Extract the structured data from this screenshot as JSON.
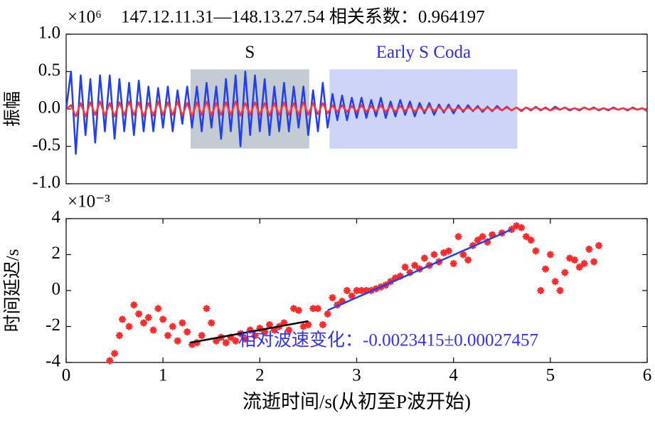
{
  "chart_data": [
    {
      "type": "line",
      "title": "147.12.11.31—148.13.27.54    相关系数：0.964197",
      "y_label": "振幅",
      "y_multiplier": "×10⁶",
      "xlim": [
        0,
        6
      ],
      "ylim": [
        -1,
        1
      ],
      "yticks": [
        {
          "value": -1,
          "label": "-1.0"
        },
        {
          "value": -0.5,
          "label": "-0.5"
        },
        {
          "value": 0,
          "label": "0.0"
        },
        {
          "value": 0.5,
          "label": "0.5"
        },
        {
          "value": 1,
          "label": "1.0"
        }
      ],
      "regions": [
        {
          "label": "S",
          "label_color": "#000000",
          "color": "#c3ccd3",
          "xlim": [
            1.285,
            2.51
          ],
          "ylim": [
            -0.53,
            0.53
          ]
        },
        {
          "label": "Early S Coda",
          "label_color": "#2a2aff",
          "color": "#cdd4f8",
          "xlim": [
            2.72,
            4.66
          ],
          "ylim": [
            -0.53,
            0.53
          ]
        }
      ],
      "x": [
        0,
        0.05,
        0.1,
        0.15,
        0.2,
        0.25,
        0.3,
        0.35,
        0.4,
        0.45,
        0.5,
        0.55,
        0.6,
        0.65,
        0.7,
        0.75,
        0.8,
        0.85,
        0.9,
        0.95,
        1,
        1.05,
        1.1,
        1.15,
        1.2,
        1.25,
        1.3,
        1.35,
        1.4,
        1.45,
        1.5,
        1.55,
        1.6,
        1.65,
        1.7,
        1.75,
        1.8,
        1.85,
        1.9,
        1.95,
        2,
        2.05,
        2.1,
        2.15,
        2.2,
        2.25,
        2.3,
        2.35,
        2.4,
        2.45,
        2.5,
        2.55,
        2.6,
        2.65,
        2.7,
        2.75,
        2.8,
        2.85,
        2.9,
        2.95,
        3,
        3.05,
        3.1,
        3.15,
        3.2,
        3.25,
        3.3,
        3.35,
        3.4,
        3.45,
        3.5,
        3.55,
        3.6,
        3.65,
        3.7,
        3.75,
        3.8,
        3.85,
        3.9,
        3.95,
        4,
        4.05,
        4.1,
        4.15,
        4.2,
        4.25,
        4.3,
        4.35,
        4.4,
        4.45,
        4.5,
        4.55,
        4.6,
        4.65,
        4.7,
        4.75,
        4.8,
        4.85,
        4.9,
        4.95,
        5,
        5.05,
        5.1,
        5.15,
        5.2,
        5.25,
        5.3,
        5.35,
        5.4,
        5.45,
        5.5,
        5.55,
        5.6,
        5.65,
        5.7,
        5.75,
        5.8,
        5.85,
        5.9,
        5.95,
        6
      ],
      "series": [
        {
          "type": "line",
          "color": "#1f3cff",
          "values": [
            0,
            0.5,
            -0.6,
            0.45,
            -0.35,
            0.4,
            -0.45,
            0.45,
            -0.3,
            0.45,
            -0.4,
            0.4,
            -0.3,
            0.35,
            -0.35,
            0.38,
            -0.3,
            0.3,
            -0.3,
            0.28,
            -0.25,
            0.3,
            -0.3,
            0.25,
            -0.2,
            0.3,
            -0.25,
            0.3,
            -0.3,
            0.35,
            -0.25,
            0.3,
            -0.4,
            0.4,
            -0.3,
            0.45,
            -0.5,
            0.5,
            -0.35,
            0.45,
            -0.3,
            0.4,
            -0.35,
            0.3,
            -0.3,
            0.35,
            -0.3,
            0.3,
            -0.25,
            0.3,
            -0.35,
            0.25,
            -0.3,
            0.35,
            -0.25,
            0.2,
            -0.15,
            0.18,
            -0.15,
            0.15,
            -0.12,
            0.15,
            -0.12,
            0.12,
            -0.1,
            0.15,
            -0.12,
            0.1,
            -0.1,
            0.12,
            -0.08,
            0.1,
            -0.1,
            0.08,
            -0.06,
            0.08,
            -0.08,
            0.06,
            -0.05,
            0.06,
            -0.06,
            0.05,
            -0.04,
            0.05,
            -0.03,
            0.04,
            -0.04,
            0.03,
            -0.03,
            0.04,
            -0.02,
            0.03,
            -0.02,
            0.02,
            -0.03,
            0.02,
            -0.02,
            0.03,
            -0.02,
            0.02,
            -0.02,
            0.03,
            -0.01,
            0.02,
            -0.02,
            0.01,
            -0.02,
            0.02,
            -0.01,
            0.02,
            -0.02,
            0.01,
            -0.02,
            0.02,
            -0.01,
            0.01,
            -0.02,
            0.02,
            -0.01,
            0.01,
            -0.03
          ]
        },
        {
          "type": "line",
          "color": "#ff3333",
          "values": [
            0,
            0.05,
            -0.1,
            0.08,
            -0.1,
            0.09,
            -0.08,
            0.1,
            -0.09,
            0.08,
            -0.1,
            0.09,
            -0.08,
            0.1,
            -0.08,
            0.09,
            -0.1,
            0.08,
            -0.09,
            0.1,
            -0.08,
            0.09,
            -0.08,
            0.1,
            -0.09,
            0.08,
            -0.1,
            0.09,
            -0.08,
            0.1,
            -0.09,
            0.08,
            -0.08,
            0.09,
            -0.08,
            0.1,
            -0.09,
            0.08,
            -0.08,
            0.09,
            -0.08,
            0.08,
            -0.09,
            0.08,
            -0.08,
            0.09,
            -0.08,
            0.08,
            -0.08,
            0.09,
            -0.08,
            0.08,
            -0.07,
            0.08,
            -0.06,
            0.05,
            -0.04,
            0.05,
            -0.04,
            0.04,
            -0.04,
            0.05,
            -0.04,
            0.04,
            -0.04,
            0.05,
            -0.04,
            0.04,
            -0.04,
            0.04,
            -0.03,
            0.04,
            -0.04,
            0.03,
            -0.03,
            0.04,
            -0.03,
            0.03,
            -0.03,
            0.03,
            -0.02,
            0.02,
            -0.02,
            0.02,
            -0.02,
            0.02,
            -0.02,
            0.02,
            -0.02,
            0.02,
            -0.02,
            0.02,
            -0.02,
            0.02,
            -0.02,
            0.02,
            -0.01,
            0.02,
            -0.01,
            0.01,
            -0.02,
            0.01,
            -0.01,
            0.02,
            -0.01,
            0.01,
            -0.01,
            0.02,
            -0.01,
            0.01,
            -0.01,
            0.01,
            -0.01,
            0.01,
            -0.01,
            0.01,
            -0.01,
            0.01,
            -0.01,
            0.01,
            -0.02
          ]
        }
      ]
    },
    {
      "type": "scatter",
      "y_label": "时间延迟/s",
      "x_label": "流逝时间/s(从初至P波开始)",
      "y_multiplier": "×10⁻³",
      "annotation": "相对波速变化：-0.0023415±0.00027457",
      "annotation_color": "#3030ff",
      "xlim": [
        0,
        6
      ],
      "xticks": [
        0,
        1,
        2,
        3,
        4,
        5,
        6
      ],
      "ylim": [
        -4,
        4
      ],
      "yticks": [
        -4,
        -2,
        0,
        2,
        4
      ],
      "series": [
        {
          "type": "scatter",
          "color": "#ff2a2a",
          "x": [
            0.45,
            0.5,
            0.55,
            0.58,
            0.65,
            0.7,
            0.75,
            0.8,
            0.85,
            0.9,
            0.95,
            1,
            1.05,
            1.1,
            1.15,
            1.2,
            1.25,
            1.3,
            1.35,
            1.4,
            1.45,
            1.5,
            1.55,
            1.6,
            1.65,
            1.7,
            1.75,
            1.8,
            1.85,
            1.9,
            1.95,
            2,
            2.05,
            2.1,
            2.15,
            2.2,
            2.25,
            2.3,
            2.35,
            2.4,
            2.45,
            2.5,
            2.55,
            2.6,
            2.65,
            2.7,
            2.75,
            2.8,
            2.85,
            2.9,
            2.95,
            3,
            3.05,
            3.1,
            3.15,
            3.2,
            3.25,
            3.3,
            3.35,
            3.4,
            3.45,
            3.5,
            3.55,
            3.6,
            3.65,
            3.7,
            3.75,
            3.8,
            3.85,
            3.9,
            3.95,
            4,
            4.05,
            4.1,
            4.15,
            4.2,
            4.25,
            4.3,
            4.35,
            4.4,
            4.5,
            4.6,
            4.65,
            4.7,
            4.75,
            4.8,
            4.85,
            4.9,
            4.95,
            5,
            5.05,
            5.1,
            5.15,
            5.2,
            5.25,
            5.3,
            5.35,
            5.4,
            5.45,
            5.5
          ],
          "values": [
            -3.9,
            -3.5,
            -2.5,
            -1.6,
            -2,
            -0.8,
            -1.3,
            -1.8,
            -1.5,
            -2.2,
            -1,
            -1.6,
            -2.5,
            -2,
            -2.8,
            -1.8,
            -2.3,
            -3,
            -2.9,
            -2.5,
            -1,
            -1.8,
            -2.8,
            -2.6,
            -2.9,
            -2.6,
            -2.8,
            -2.4,
            -2.7,
            -2.2,
            -2.5,
            -2.1,
            -2.3,
            -1.9,
            -2.2,
            -2,
            -1.8,
            -2.2,
            -1,
            -1.1,
            -2,
            -1.9,
            -1,
            -1,
            -1.9,
            -1.3,
            -0.4,
            -0.8,
            -0.6,
            0,
            -0.3,
            0,
            0,
            0,
            0,
            0.1,
            0.2,
            0.3,
            0.5,
            0.7,
            0.8,
            1.3,
            1,
            1.4,
            1.2,
            1.8,
            1.4,
            2,
            1.6,
            2.1,
            2.2,
            1.5,
            3,
            2,
            1.7,
            2.5,
            2.8,
            3,
            2.7,
            3.1,
            3.2,
            3.4,
            3.6,
            3.5,
            3,
            2.8,
            2.2,
            0,
            1.2,
            2,
            0.5,
            0,
            1,
            1.8,
            1.7,
            1.3,
            1.5,
            2.3,
            1.6,
            2.5
          ]
        },
        {
          "type": "line",
          "color": "#2040ff",
          "x": [
            2.7,
            4.6
          ],
          "values": [
            -1.1,
            3.4
          ]
        },
        {
          "type": "line",
          "color": "#000000",
          "x": [
            1.28,
            2.5
          ],
          "values": [
            -2.9,
            -1.7
          ]
        }
      ]
    }
  ]
}
